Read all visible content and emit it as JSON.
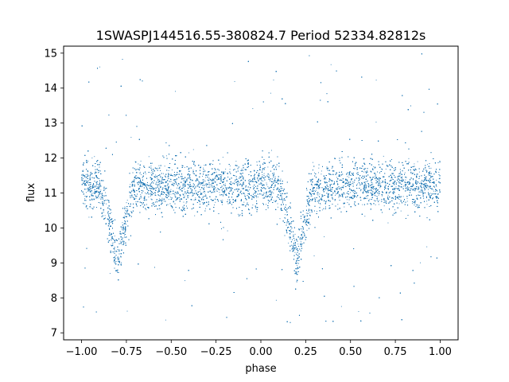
{
  "chart_data": {
    "type": "scatter",
    "title": "1SWASPJ144516.55-380824.7 Period 52334.82812s",
    "xlabel": "phase",
    "ylabel": "flux",
    "xlim": [
      -1.1,
      1.1
    ],
    "ylim": [
      6.8,
      15.2
    ],
    "xticks": [
      -1.0,
      -0.75,
      -0.5,
      -0.25,
      0.0,
      0.25,
      0.5,
      0.75,
      1.0
    ],
    "xtick_labels": [
      "−1.00",
      "−0.75",
      "−0.50",
      "−0.25",
      "0.00",
      "0.25",
      "0.50",
      "0.75",
      "1.00"
    ],
    "yticks": [
      7,
      8,
      9,
      10,
      11,
      12,
      13,
      14,
      15
    ],
    "ytick_labels": [
      "7",
      "8",
      "9",
      "10",
      "11",
      "12",
      "13",
      "14",
      "15"
    ],
    "grid": false,
    "point_color": "#1f77b4",
    "profile": {
      "baseline_flux": 11.2,
      "baseline_scatter": 0.35,
      "phase_range": [
        -1.0,
        1.0
      ],
      "minima": [
        {
          "phase": -0.8,
          "flux": 9.0,
          "half_width": 0.1
        },
        {
          "phase": 0.2,
          "flux": 9.0,
          "half_width": 0.1
        }
      ]
    }
  }
}
